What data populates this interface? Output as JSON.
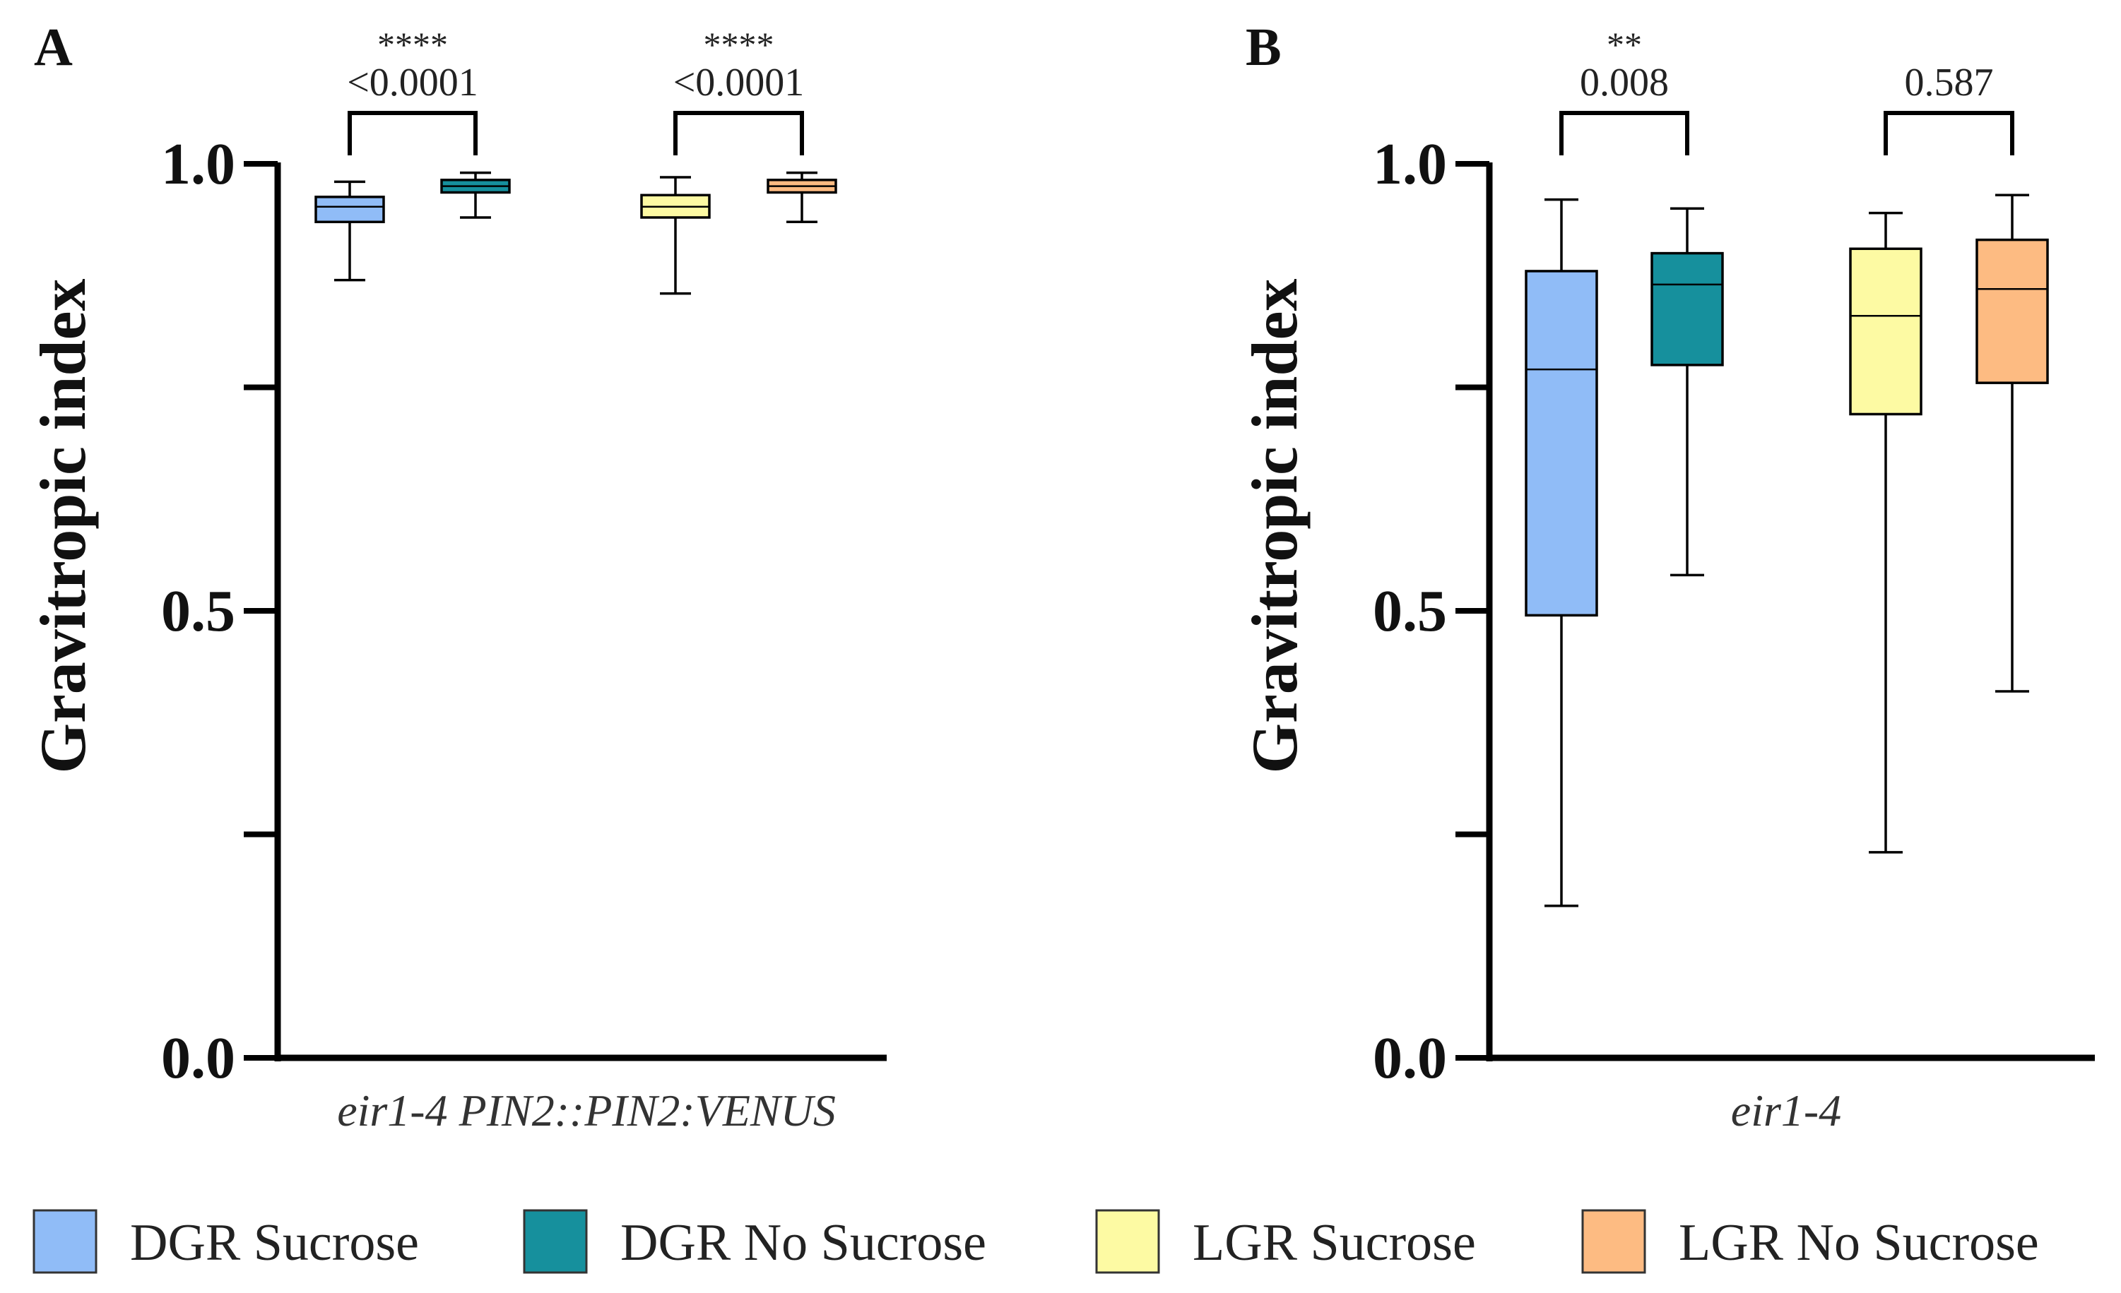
{
  "chart_data": [
    {
      "type": "box",
      "panel": "A",
      "ylabel": "Gravitropic index",
      "xlabel": "eir1-4 PIN2::PIN2:VENUS",
      "ylim": [
        0,
        1.0
      ],
      "yticks": [
        "0.0",
        "0.5",
        "1.0"
      ],
      "series": [
        {
          "name": "DGR Sucrose",
          "min": 0.87,
          "q1": 0.935,
          "median": 0.952,
          "q3": 0.963,
          "max": 0.98
        },
        {
          "name": "DGR No Sucrose",
          "min": 0.94,
          "q1": 0.968,
          "median": 0.975,
          "q3": 0.982,
          "max": 0.99
        },
        {
          "name": "LGR Sucrose",
          "min": 0.855,
          "q1": 0.94,
          "median": 0.952,
          "q3": 0.965,
          "max": 0.985
        },
        {
          "name": "LGR No Sucrose",
          "min": 0.935,
          "q1": 0.968,
          "median": 0.975,
          "q3": 0.982,
          "max": 0.99
        }
      ],
      "comparisons": [
        {
          "between": [
            0,
            1
          ],
          "stars": "****",
          "p": "<0.0001"
        },
        {
          "between": [
            2,
            3
          ],
          "stars": "****",
          "p": "<0.0001"
        }
      ]
    },
    {
      "type": "box",
      "panel": "B",
      "ylabel": "Gravitropic index",
      "xlabel": "eir1-4",
      "ylim": [
        0,
        1.0
      ],
      "yticks": [
        "0.0",
        "0.5",
        "1.0"
      ],
      "series": [
        {
          "name": "DGR Sucrose",
          "min": 0.17,
          "q1": 0.495,
          "median": 0.77,
          "q3": 0.88,
          "max": 0.96
        },
        {
          "name": "DGR No Sucrose",
          "min": 0.54,
          "q1": 0.775,
          "median": 0.865,
          "q3": 0.9,
          "max": 0.95
        },
        {
          "name": "LGR Sucrose",
          "min": 0.23,
          "q1": 0.72,
          "median": 0.83,
          "q3": 0.905,
          "max": 0.945
        },
        {
          "name": "LGR No Sucrose",
          "min": 0.41,
          "q1": 0.755,
          "median": 0.86,
          "q3": 0.915,
          "max": 0.965
        }
      ],
      "comparisons": [
        {
          "between": [
            0,
            1
          ],
          "stars": "**",
          "p": "0.008"
        },
        {
          "between": [
            2,
            3
          ],
          "stars": "",
          "p": "0.587"
        }
      ]
    }
  ],
  "legend": [
    {
      "label": "DGR Sucrose",
      "color": "#90bcf7"
    },
    {
      "label": "DGR No Sucrose",
      "color": "#16909d"
    },
    {
      "label": "LGR Sucrose",
      "color": "#fdfaa3"
    },
    {
      "label": "LGR No Sucrose",
      "color": "#fdbb82"
    }
  ]
}
